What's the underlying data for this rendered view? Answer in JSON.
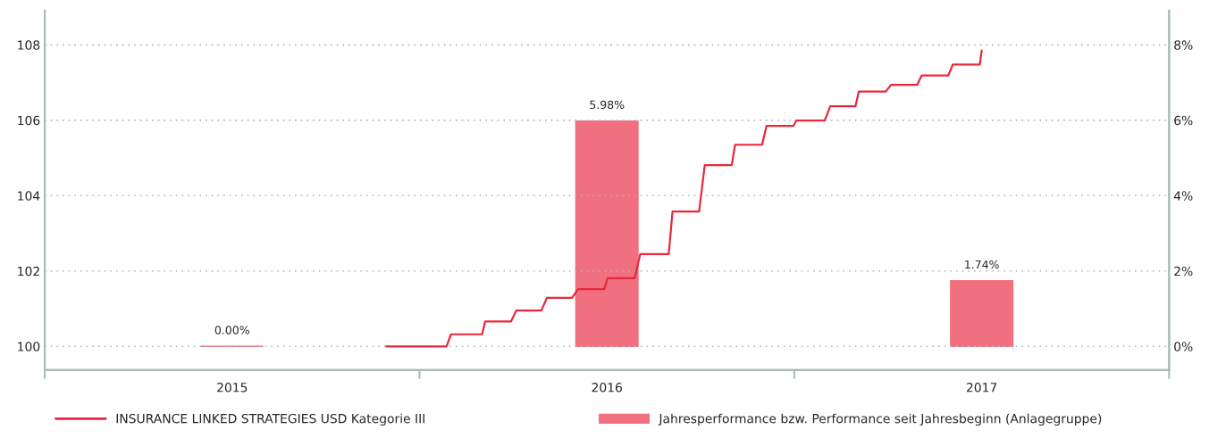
{
  "chart_data": {
    "type": "line",
    "xlim": [
      2015,
      2018
    ],
    "xticks": [
      {
        "value": 2015,
        "label": null
      },
      {
        "value": 2015.5,
        "label": "2015"
      },
      {
        "value": 2016,
        "label": null
      },
      {
        "value": 2016.5,
        "label": "2016"
      },
      {
        "value": 2017,
        "label": null
      },
      {
        "value": 2017.5,
        "label": "2017"
      },
      {
        "value": 2018,
        "label": null
      }
    ],
    "ylim": [
      99.37,
      108.9
    ],
    "yticks": [
      100,
      102,
      104,
      106,
      108
    ],
    "y2lim": [
      -0.63,
      8.9
    ],
    "y2ticks": [
      {
        "value": 0,
        "label": "0%"
      },
      {
        "value": 2,
        "label": "2%"
      },
      {
        "value": 4,
        "label": "4%"
      },
      {
        "value": 6,
        "label": "6%"
      },
      {
        "value": 8,
        "label": "8%"
      }
    ],
    "grid": "y",
    "legend": "bottom",
    "series": [
      {
        "name": "INSURANCE LINKED STRATEGIES USD Kategorie III",
        "color": "#e8283c",
        "x": [
          2015.911,
          2016.072,
          2016.084,
          2016.167,
          2016.175,
          2016.244,
          2016.258,
          2016.325,
          2016.34,
          2016.407,
          2016.423,
          2016.493,
          2016.502,
          2016.574,
          2016.589,
          2016.665,
          2016.675,
          2016.746,
          2016.761,
          2016.833,
          2016.842,
          2016.914,
          2016.926,
          2016.998,
          2017.005,
          2017.081,
          2017.096,
          2017.163,
          2017.172,
          2017.244,
          2017.258,
          2017.328,
          2017.34,
          2017.411,
          2017.423,
          2017.495,
          2017.5
        ],
        "values": [
          100,
          100,
          100.32,
          100.32,
          100.66,
          100.66,
          100.95,
          100.95,
          101.29,
          101.29,
          101.52,
          101.52,
          101.81,
          101.81,
          102.45,
          102.45,
          103.58,
          103.58,
          104.81,
          104.81,
          105.35,
          105.35,
          105.85,
          105.85,
          105.99,
          105.99,
          106.37,
          106.37,
          106.76,
          106.76,
          106.94,
          106.94,
          107.19,
          107.19,
          107.48,
          107.48,
          107.85
        ]
      },
      {
        "name": "Jahresperformance bzw. Performance seit Jahresbeginn (Anlagegruppe)",
        "type": "bar",
        "axis": "y2",
        "color": "#f07080",
        "x": [
          2015.5,
          2016.5,
          2017.5
        ],
        "values": [
          0,
          5.98,
          1.74
        ],
        "value_labels": [
          "0.00%",
          "5.98%",
          "1.74%"
        ]
      }
    ]
  }
}
